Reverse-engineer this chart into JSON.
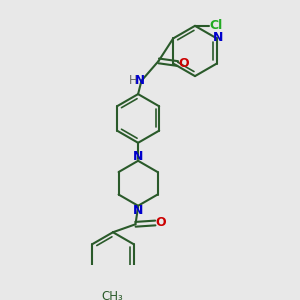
{
  "background_color": "#e8e8e8",
  "bond_color": "#2a5a2a",
  "N_color": "#0000cc",
  "O_color": "#cc0000",
  "Cl_color": "#22aa22",
  "figsize": [
    3.0,
    3.0
  ],
  "dpi": 100,
  "xlim": [
    0,
    10
  ],
  "ylim": [
    0,
    10
  ]
}
